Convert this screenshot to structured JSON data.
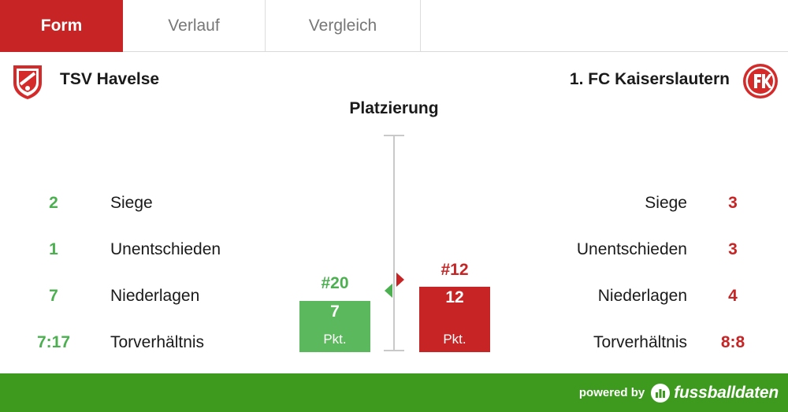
{
  "tabs": [
    {
      "label": "Form",
      "active": true
    },
    {
      "label": "Verlauf",
      "active": false
    },
    {
      "label": "Vergleich",
      "active": false
    }
  ],
  "teams": {
    "left": {
      "name": "TSV Havelse",
      "logo": "tsv-havelse-crest"
    },
    "right": {
      "name": "1. FC Kaiserslautern",
      "logo": "fc-kaiserslautern-crest"
    }
  },
  "section_title": "Platzierung",
  "stats": {
    "left": [
      {
        "value": "2",
        "label": "Siege"
      },
      {
        "value": "1",
        "label": "Unentschieden"
      },
      {
        "value": "7",
        "label": "Niederlagen"
      },
      {
        "value": "7:17",
        "label": "Torverhältnis"
      }
    ],
    "right": [
      {
        "value": "3",
        "label": "Siege"
      },
      {
        "value": "3",
        "label": "Unentschieden"
      },
      {
        "value": "4",
        "label": "Niederlagen"
      },
      {
        "value": "8:8",
        "label": "Torverhältnis"
      }
    ]
  },
  "placement": {
    "left": {
      "rank": "#20",
      "points": "7",
      "unit": "Pkt."
    },
    "right": {
      "rank": "#12",
      "points": "12",
      "unit": "Pkt."
    }
  },
  "footer": {
    "powered_by": "powered by",
    "brand": "fussballdaten",
    "icon": "fussballdaten-bars-icon"
  },
  "colors": {
    "accent_red": "#c72525",
    "accent_green": "#4caf50",
    "footer_green": "#3d9a1f"
  }
}
